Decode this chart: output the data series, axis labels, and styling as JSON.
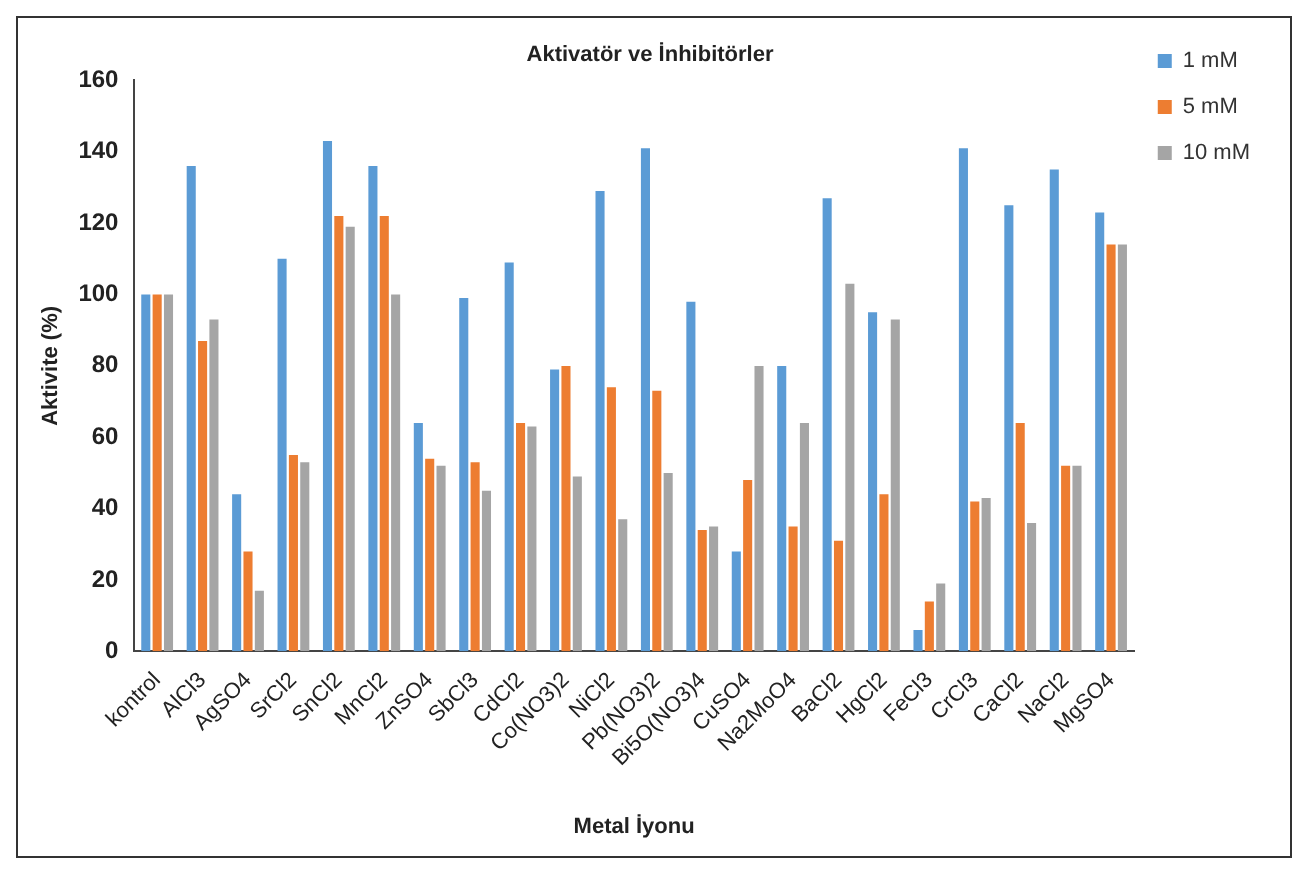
{
  "chart_data": {
    "type": "bar",
    "title": "Aktivatör ve İnhibitörler",
    "xlabel": "Metal İyonu",
    "ylabel": "Aktivite (%)",
    "categories": [
      "kontrol",
      "AlCl3",
      "AgSO4",
      "SrCl2",
      "SnCl2",
      "MnCl2",
      "ZnSO4",
      "SbCl3",
      "CdCl2",
      "Co(NO3)2",
      "NiCl2",
      "Pb(NO3)2",
      "Bi5O(NO3)4",
      "CuSO4",
      "Na2MoO4",
      "BaCl2",
      "HgCl2",
      "FeCl3",
      "CrCl3",
      "CaCl2",
      "NaCl2",
      "MgSO4"
    ],
    "series": [
      {
        "name": "1 mM",
        "color": "#5b9bd5",
        "values": [
          100,
          136,
          44,
          110,
          143,
          136,
          64,
          99,
          109,
          79,
          129,
          141,
          98,
          28,
          80,
          127,
          95,
          6,
          141,
          125,
          135,
          123
        ]
      },
      {
        "name": "5 mM",
        "color": "#ed7d31",
        "values": [
          100,
          87,
          28,
          55,
          122,
          122,
          54,
          53,
          64,
          80,
          74,
          73,
          34,
          48,
          35,
          31,
          44,
          14,
          42,
          64,
          52,
          114
        ]
      },
      {
        "name": "10 mM",
        "color": "#a5a5a5",
        "values": [
          100,
          93,
          17,
          53,
          119,
          100,
          52,
          45,
          63,
          49,
          37,
          50,
          35,
          80,
          64,
          103,
          93,
          19,
          43,
          36,
          52,
          114
        ]
      }
    ],
    "ylim": [
      0,
      160
    ],
    "yticks": [
      0,
      20,
      40,
      60,
      80,
      100,
      120,
      140,
      160
    ],
    "grid": false,
    "legend": "top right"
  }
}
